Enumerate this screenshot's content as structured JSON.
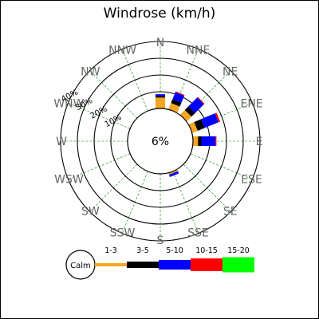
{
  "title": "Windrose (km/h)",
  "chart_data": {
    "type": "windrose",
    "title": "Windrose (km/h)",
    "calm_label": "6%",
    "calm_percent": 6,
    "rings": [
      {
        "label": "10%",
        "value": 10
      },
      {
        "label": "20%",
        "value": 20
      },
      {
        "label": "30%",
        "value": 30
      },
      {
        "label": "40%",
        "value": 40
      }
    ],
    "directions": [
      "N",
      "NNE",
      "NE",
      "ENE",
      "E",
      "ESE",
      "SE",
      "SSE",
      "S",
      "SSW",
      "SW",
      "WSW",
      "W",
      "WNW",
      "NW",
      "NNW"
    ],
    "speed_bins": [
      {
        "name": "1-3",
        "color": "#f5a623"
      },
      {
        "name": "3-5",
        "color": "#000000"
      },
      {
        "name": "5-10",
        "color": "#0000ff"
      },
      {
        "name": "10-15",
        "color": "#ff0000"
      },
      {
        "name": "15-20",
        "color": "#00ff00"
      }
    ],
    "series": [
      {
        "name": "1-3",
        "values": [
          6.5,
          4,
          4,
          3.5,
          3,
          0,
          0,
          1,
          0,
          0,
          0,
          0,
          0,
          0,
          0,
          0
        ]
      },
      {
        "name": "3-5",
        "values": [
          1,
          2.5,
          3,
          4.5,
          2,
          0,
          0,
          0,
          0,
          0,
          0,
          0,
          0,
          0,
          0,
          0
        ]
      },
      {
        "name": "5-10",
        "values": [
          1,
          4.5,
          7.5,
          9,
          8.5,
          0,
          0,
          1.5,
          0,
          0,
          0,
          0,
          0,
          0,
          0,
          0
        ]
      },
      {
        "name": "10-15",
        "values": [
          0,
          0.5,
          0.5,
          1,
          0.5,
          0,
          0,
          0,
          0,
          0,
          0,
          0,
          0,
          0,
          0,
          0
        ]
      },
      {
        "name": "15-20",
        "values": [
          0,
          0,
          0,
          0,
          0,
          0,
          0,
          0,
          0,
          0,
          0,
          0,
          0,
          0,
          0,
          0
        ]
      }
    ],
    "legend": {
      "calm_label": "Calm",
      "items": [
        "1-3",
        "3-5",
        "5-10",
        "10-15",
        "15-20"
      ],
      "colors": [
        "#f5a623",
        "#000000",
        "#0000ff",
        "#ff0000",
        "#00ff00"
      ]
    },
    "grid_color": "#008800"
  }
}
